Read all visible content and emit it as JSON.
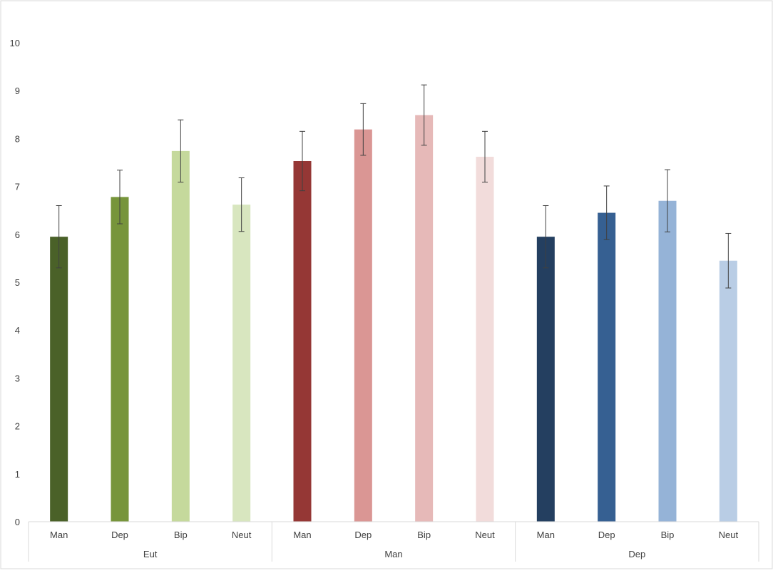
{
  "chart_data": {
    "type": "bar",
    "title": "",
    "xlabel": "",
    "ylabel": "",
    "ylim": [
      0,
      10
    ],
    "yticks": [
      0,
      1,
      2,
      3,
      4,
      5,
      6,
      7,
      8,
      9,
      10
    ],
    "grid": false,
    "legend": "none",
    "groups": [
      {
        "label": "Eut",
        "bars": [
          {
            "label": "Man",
            "value": 5.95,
            "error": 0.65,
            "color": "#4a6128"
          },
          {
            "label": "Dep",
            "value": 6.78,
            "error": 0.56,
            "color": "#77953b"
          },
          {
            "label": "Bip",
            "value": 7.74,
            "error": 0.65,
            "color": "#c5d99c"
          },
          {
            "label": "Neut",
            "value": 6.62,
            "error": 0.56,
            "color": "#d8e6bf"
          }
        ]
      },
      {
        "label": "Man",
        "bars": [
          {
            "label": "Man",
            "value": 7.53,
            "error": 0.62,
            "color": "#953735"
          },
          {
            "label": "Dep",
            "value": 8.19,
            "error": 0.54,
            "color": "#da9694"
          },
          {
            "label": "Bip",
            "value": 8.49,
            "error": 0.63,
            "color": "#e6b9b8"
          },
          {
            "label": "Neut",
            "value": 7.62,
            "error": 0.53,
            "color": "#f2dcdb"
          }
        ]
      },
      {
        "label": "Dep",
        "bars": [
          {
            "label": "Man",
            "value": 5.95,
            "error": 0.65,
            "color": "#243f60"
          },
          {
            "label": "Dep",
            "value": 6.45,
            "error": 0.56,
            "color": "#366092"
          },
          {
            "label": "Bip",
            "value": 6.7,
            "error": 0.65,
            "color": "#95b3d7"
          },
          {
            "label": "Neut",
            "value": 5.45,
            "error": 0.57,
            "color": "#b9cde5"
          }
        ]
      }
    ],
    "error_bar_color": "#404040",
    "axis_color": "#d9d9d9"
  }
}
